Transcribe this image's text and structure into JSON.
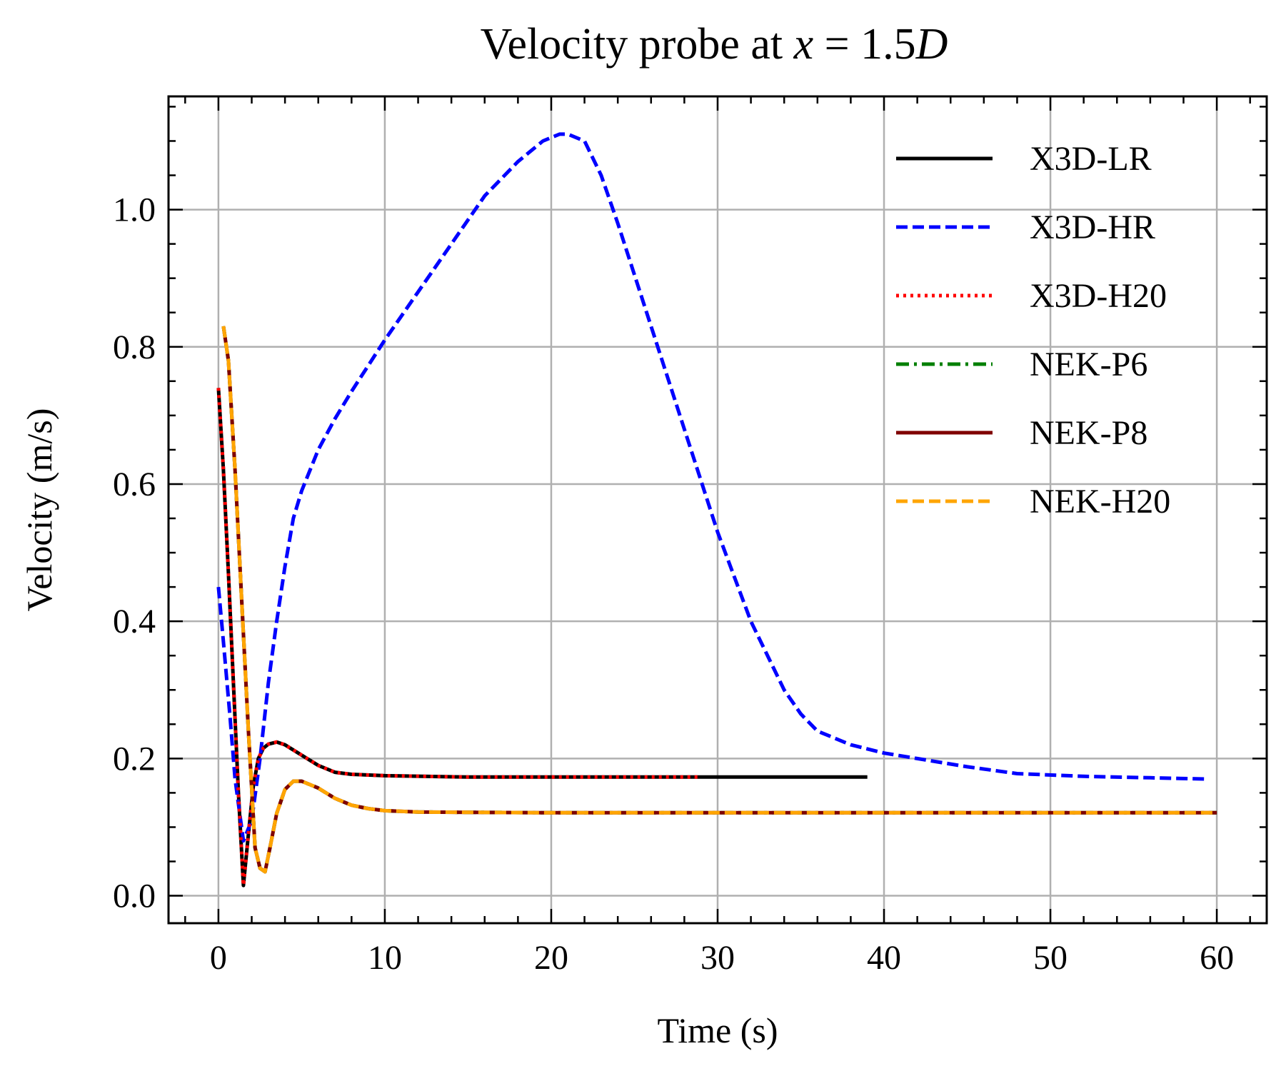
{
  "chart_data": {
    "type": "line",
    "title": {
      "prefix": "Velocity probe at ",
      "math_var": "x",
      "math_op": " = ",
      "math_num": "1.5",
      "math_unit": "D"
    },
    "xlabel": "Time (s)",
    "ylabel": "Velocity (m/s)",
    "xlim": [
      -3,
      63
    ],
    "ylim": [
      -0.04,
      1.165
    ],
    "xticks": [
      0,
      10,
      20,
      30,
      40,
      50,
      60
    ],
    "yticks": [
      0.0,
      0.2,
      0.4,
      0.6,
      0.8,
      1.0
    ],
    "xtick_labels": [
      "0",
      "10",
      "20",
      "30",
      "40",
      "50",
      "60"
    ],
    "ytick_labels": [
      "0.0",
      "0.2",
      "0.4",
      "0.6",
      "0.8",
      "1.0"
    ],
    "grid": true,
    "legend_position": "top-right",
    "series": [
      {
        "name": "X3D-LR",
        "color": "#000000",
        "dash": "solid",
        "x": [
          0,
          0.3,
          0.6,
          0.9,
          1.2,
          1.5,
          1.8,
          2.1,
          2.4,
          2.7,
          3.0,
          3.5,
          4.0,
          5.0,
          6.0,
          7.0,
          8.0,
          10.0,
          15.0,
          20.0,
          25.0,
          30.0,
          35.0,
          39.0
        ],
        "y": [
          0.74,
          0.62,
          0.47,
          0.31,
          0.15,
          0.015,
          0.09,
          0.16,
          0.2,
          0.215,
          0.221,
          0.224,
          0.22,
          0.205,
          0.19,
          0.18,
          0.177,
          0.175,
          0.173,
          0.173,
          0.173,
          0.173,
          0.173,
          0.173
        ]
      },
      {
        "name": "X3D-HR",
        "color": "#0000ff",
        "dash": "dashed",
        "x": [
          0,
          0.3,
          0.7,
          1.0,
          1.5,
          2.0,
          2.5,
          3.0,
          3.5,
          4.0,
          4.5,
          5.0,
          6.0,
          7.0,
          8.0,
          10.0,
          12.0,
          14.0,
          16.0,
          18.0,
          19.5,
          20.5,
          21.0,
          22.0,
          23.0,
          24.0,
          26.0,
          28.0,
          30.0,
          32.0,
          34.0,
          35.0,
          36.0,
          38.0,
          40.0,
          42.0,
          45.0,
          48.0,
          52.0,
          56.0,
          59.5
        ],
        "y": [
          0.45,
          0.37,
          0.26,
          0.17,
          0.08,
          0.11,
          0.2,
          0.31,
          0.4,
          0.48,
          0.55,
          0.59,
          0.65,
          0.695,
          0.735,
          0.81,
          0.88,
          0.95,
          1.02,
          1.07,
          1.1,
          1.11,
          1.11,
          1.1,
          1.05,
          0.98,
          0.83,
          0.68,
          0.53,
          0.4,
          0.3,
          0.265,
          0.24,
          0.22,
          0.208,
          0.2,
          0.188,
          0.178,
          0.174,
          0.172,
          0.17
        ]
      },
      {
        "name": "X3D-H20",
        "color": "#ff0000",
        "dash": "dotted",
        "x": [
          0,
          0.3,
          0.6,
          0.9,
          1.2,
          1.5,
          1.8,
          2.1,
          2.4,
          2.7,
          3.0,
          3.5,
          4.0,
          5.0,
          6.0,
          7.0,
          8.0,
          10.0,
          15.0,
          20.0,
          25.0,
          29.0
        ],
        "y": [
          0.74,
          0.62,
          0.47,
          0.31,
          0.15,
          0.015,
          0.09,
          0.16,
          0.2,
          0.215,
          0.221,
          0.224,
          0.22,
          0.205,
          0.19,
          0.18,
          0.177,
          0.175,
          0.173,
          0.173,
          0.173,
          0.173
        ]
      },
      {
        "name": "NEK-P6",
        "color": "#007f00",
        "dash": "dashdot",
        "x": [
          0.3,
          0.6,
          1.0,
          1.4,
          1.8,
          2.2,
          2.5,
          2.8,
          3.1,
          3.5,
          4.0,
          4.5,
          5.0,
          6.0,
          7.0,
          8.0,
          9.0,
          10.0,
          12.0,
          20.0,
          30.0,
          40.0,
          50.0,
          60.0
        ],
        "y": [
          0.83,
          0.78,
          0.62,
          0.43,
          0.24,
          0.07,
          0.04,
          0.035,
          0.07,
          0.12,
          0.155,
          0.167,
          0.167,
          0.157,
          0.142,
          0.132,
          0.127,
          0.124,
          0.122,
          0.121,
          0.121,
          0.121,
          0.121,
          0.121
        ]
      },
      {
        "name": "NEK-P8",
        "color": "#7f0000",
        "dash": "solid",
        "x": [
          0.3,
          0.6,
          1.0,
          1.4,
          1.8,
          2.2,
          2.5,
          2.8,
          3.1,
          3.5,
          4.0,
          4.5,
          5.0,
          6.0,
          7.0,
          8.0,
          9.0,
          10.0,
          12.0,
          20.0,
          30.0,
          40.0,
          50.0,
          60.0
        ],
        "y": [
          0.83,
          0.78,
          0.62,
          0.43,
          0.24,
          0.07,
          0.04,
          0.035,
          0.07,
          0.12,
          0.155,
          0.167,
          0.167,
          0.157,
          0.142,
          0.132,
          0.127,
          0.124,
          0.122,
          0.121,
          0.121,
          0.121,
          0.121,
          0.121
        ]
      },
      {
        "name": "NEK-H20",
        "color": "#ffa500",
        "dash": "dashed",
        "x": [
          0.3,
          0.6,
          1.0,
          1.4,
          1.8,
          2.2,
          2.5,
          2.8,
          3.1,
          3.5,
          4.0,
          4.5,
          5.0,
          6.0,
          7.0,
          8.0,
          9.0,
          10.0,
          12.0,
          20.0,
          30.0,
          40.0,
          50.0,
          60.0
        ],
        "y": [
          0.83,
          0.78,
          0.62,
          0.43,
          0.24,
          0.07,
          0.04,
          0.035,
          0.07,
          0.12,
          0.155,
          0.167,
          0.167,
          0.157,
          0.142,
          0.132,
          0.127,
          0.124,
          0.122,
          0.121,
          0.121,
          0.121,
          0.121,
          0.121
        ]
      }
    ]
  }
}
